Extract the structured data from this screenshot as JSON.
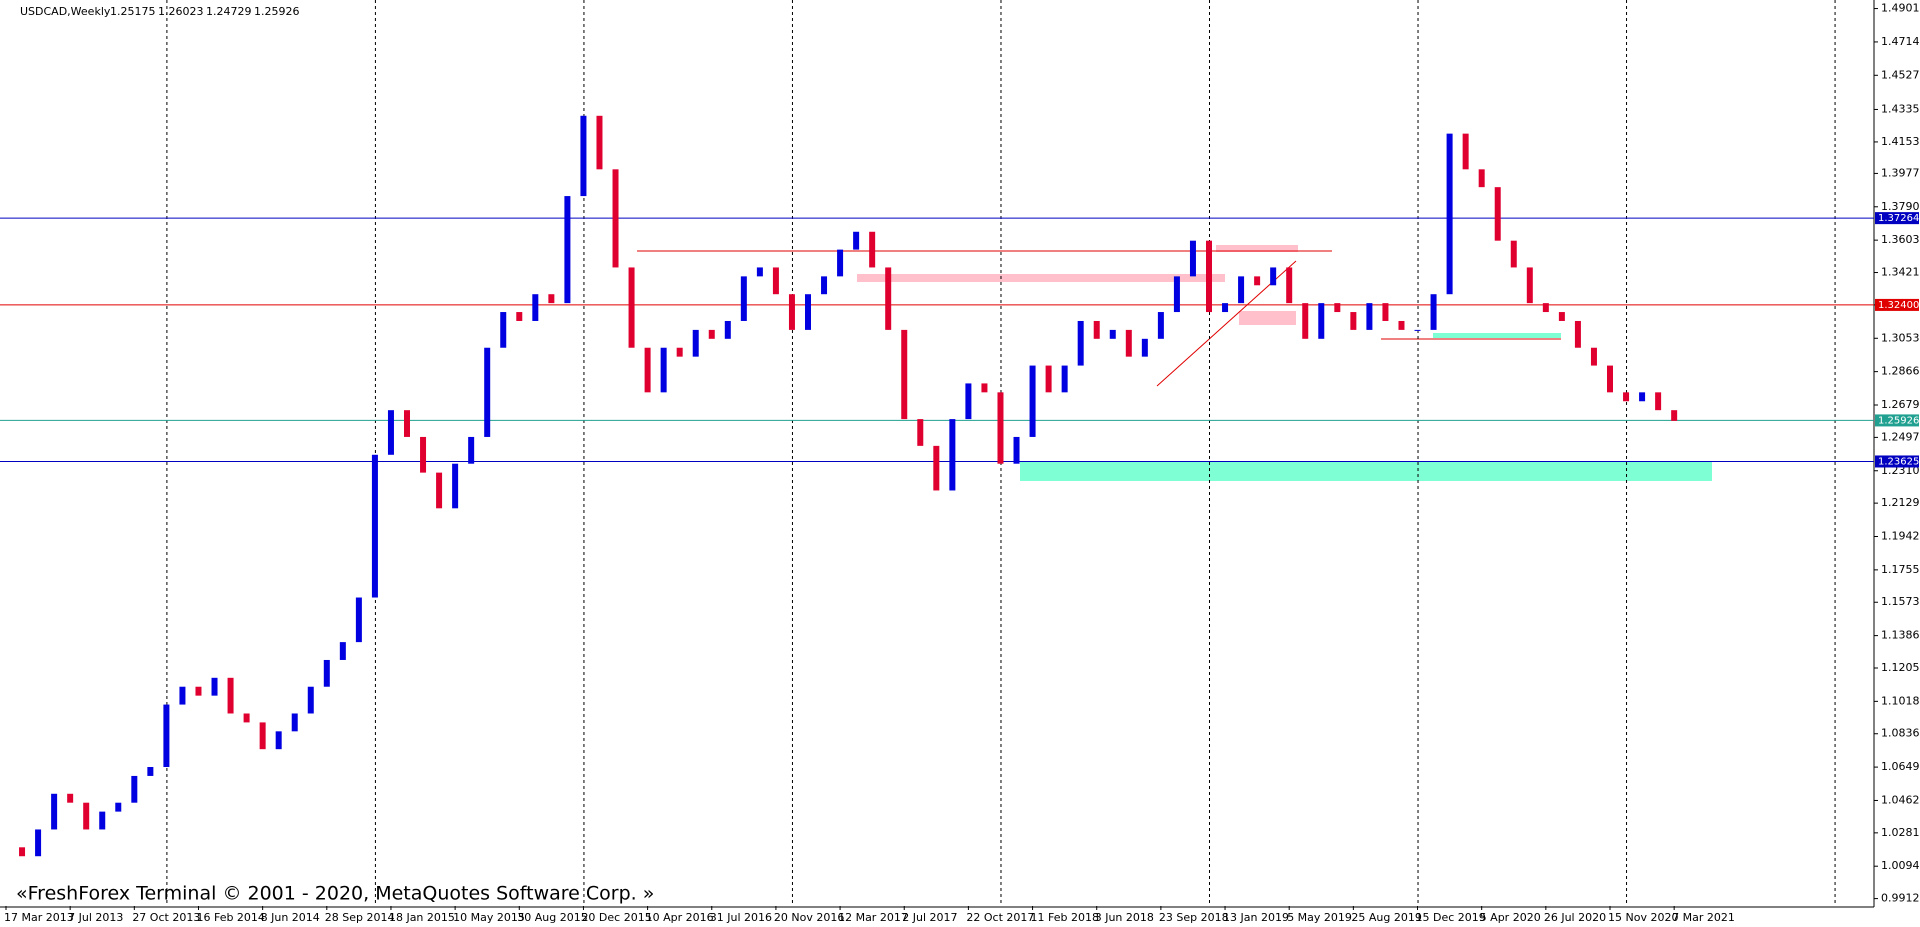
{
  "chart_data": {
    "type": "candlestick",
    "title": "USDCAD,Weekly",
    "ohlc": [
      1.25175,
      1.26023,
      1.24729,
      1.25926
    ],
    "footer": "«FreshForex Terminal © 2001 - 2020, MetaQuotes Software Corp. »",
    "up_color": "#0000e0",
    "down_color": "#e00030",
    "grid": true,
    "values": [
      1.02,
      1.015,
      1.03,
      1.05,
      1.045,
      1.03,
      1.04,
      1.045,
      1.06,
      1.065,
      1.1,
      1.11,
      1.105,
      1.115,
      1.095,
      1.09,
      1.075,
      1.085,
      1.095,
      1.11,
      1.125,
      1.135,
      1.16,
      1.24,
      1.265,
      1.25,
      1.23,
      1.21,
      1.235,
      1.25,
      1.3,
      1.32,
      1.315,
      1.33,
      1.325,
      1.385,
      1.43,
      1.4,
      1.345,
      1.3,
      1.275,
      1.3,
      1.295,
      1.31,
      1.305,
      1.315,
      1.34,
      1.345,
      1.33,
      1.31,
      1.33,
      1.34,
      1.355,
      1.365,
      1.345,
      1.31,
      1.26,
      1.245,
      1.22,
      1.26,
      1.28,
      1.275,
      1.235,
      1.25,
      1.29,
      1.275,
      1.29,
      1.315,
      1.305,
      1.31,
      1.295,
      1.305,
      1.32,
      1.34,
      1.36,
      1.32,
      1.325,
      1.34,
      1.335,
      1.345,
      1.325,
      1.305,
      1.325,
      1.32,
      1.31,
      1.325,
      1.315,
      1.31,
      1.31,
      1.33,
      1.42,
      1.4,
      1.39,
      1.36,
      1.345,
      1.325,
      1.32,
      1.315,
      1.3,
      1.29,
      1.275,
      1.27,
      1.275,
      1.265,
      1.259
    ],
    "xtick_labels": [
      "17 Mar 2013",
      "7 Jul 2013",
      "27 Oct 2013",
      "16 Feb 2014",
      "8 Jun 2014",
      "28 Sep 2014",
      "18 Jan 2015",
      "10 May 2015",
      "30 Aug 2015",
      "20 Dec 2015",
      "10 Apr 2016",
      "31 Jul 2016",
      "20 Nov 2016",
      "12 Mar 2017",
      "2 Jul 2017",
      "22 Oct 2017",
      "11 Feb 2018",
      "3 Jun 2018",
      "23 Sep 2018",
      "13 Jan 2019",
      "5 May 2019",
      "25 Aug 2019",
      "15 Dec 2019",
      "5 Apr 2020",
      "26 Jul 2020",
      "15 Nov 2020",
      "7 Mar 2021"
    ],
    "ylim": [
      0.9871,
      1.4949
    ],
    "yticks": [
      {
        "value": 1.4901,
        "label": "1.49010"
      },
      {
        "value": 1.4714,
        "label": "1.47140"
      },
      {
        "value": 1.4527,
        "label": "1.45270"
      },
      1.43355,
      1.41535,
      {
        "value": 1.3977,
        "label": "1.39770"
      },
      {
        "value": 1.379,
        "label": "1.37900"
      },
      {
        "value": 1.3603,
        "label": "1.36030"
      },
      1.34215,
      {
        "value": 1.324,
        "label": "1.32400"
      },
      {
        "value": 1.3053,
        "label": "1.30530"
      },
      {
        "value": 1.2866,
        "label": "1.28660"
      },
      {
        "value": 1.2679,
        "label": "1.26790"
      },
      1.24975,
      1.23105,
      {
        "value": 1.2129,
        "label": "1.21290"
      },
      {
        "value": 1.1942,
        "label": "1.19420"
      },
      {
        "value": 1.1755,
        "label": "1.17550"
      },
      1.15735,
      1.13865,
      {
        "value": 1.1205,
        "label": "1.12050"
      },
      {
        "value": 1.1018,
        "label": "1.10180"
      },
      1.08365,
      1.06495,
      1.04625,
      {
        "value": 1.0281,
        "label": "1.02810"
      },
      {
        "value": 1.0094,
        "label": "1.00940"
      },
      0.99125
    ],
    "levels": [
      {
        "price": 1.37264,
        "color": "#0000c0"
      },
      {
        "price": {
          "value": 1.324,
          "label": "1.32400"
        },
        "color": "#e00000"
      },
      {
        "price": 1.25926,
        "color": "#20a090"
      },
      {
        "price": 1.23625,
        "color": "#0000c0"
      }
    ]
  }
}
